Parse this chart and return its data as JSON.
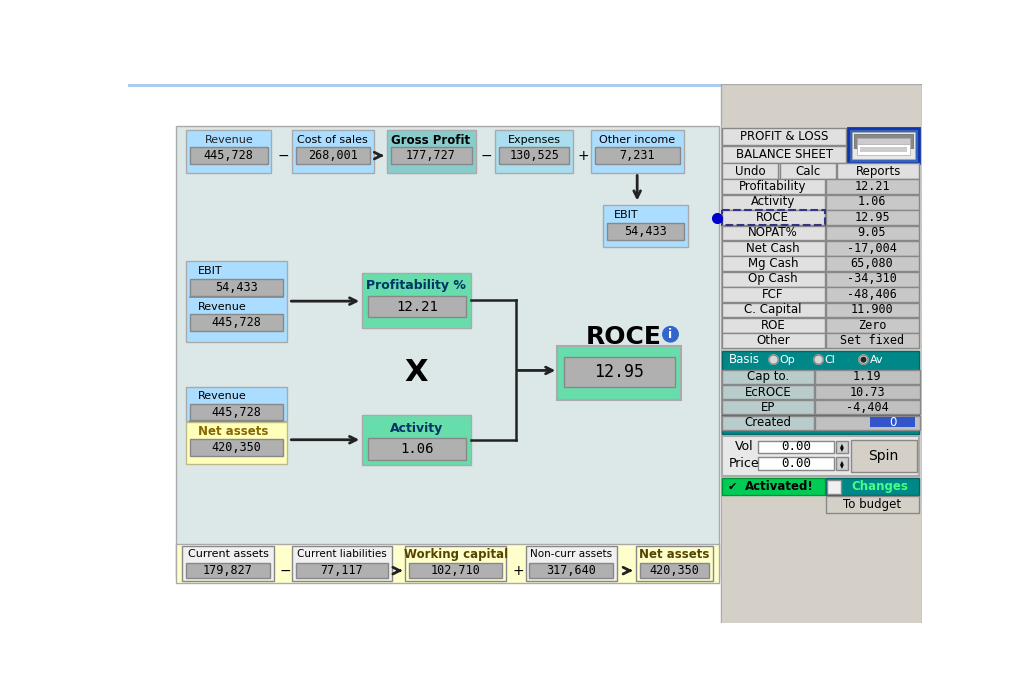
{
  "bg_white": "#ffffff",
  "bg_outer": "#f0f0f0",
  "bg_main": "#dde8e8",
  "bg_right": "#d4d0c8",
  "cyan_light": "#aaddff",
  "cyan_mid": "#88cccc",
  "green_box": "#66ddaa",
  "yellow_light": "#ffffcc",
  "value_box_bg": "#b8b8b8",
  "value_box_inner": "#cccccc",
  "top_row": {
    "labels": [
      "Revenue",
      "Cost of sales",
      "Gross Profit",
      "Expenses",
      "Other income"
    ],
    "values": [
      "445,728",
      "268,001",
      "177,727",
      "130,525",
      "7,231"
    ],
    "ops": [
      "−",
      "→",
      "−",
      "+"
    ]
  },
  "bottom_row": {
    "labels": [
      "Current assets",
      "Current liabilities",
      "Working capital",
      "Non-curr assets",
      "Net assets"
    ],
    "values": [
      "179,827",
      "77,117",
      "102,710",
      "317,640",
      "420,350"
    ],
    "ops": [
      "−",
      "→",
      "+",
      "→"
    ]
  },
  "right_metrics": [
    [
      "Profitability",
      "12.21"
    ],
    [
      "Activity",
      "1.06"
    ],
    [
      "ROCE",
      "12.95"
    ],
    [
      "NOPAT%",
      "9.05"
    ],
    [
      "Net Cash",
      "-17,004"
    ],
    [
      "Mg Cash",
      "65,080"
    ],
    [
      "Op Cash",
      "-34,310"
    ],
    [
      "FCF",
      "-48,406"
    ],
    [
      "C. Capital",
      "11.900"
    ],
    [
      "ROE",
      "Zero"
    ],
    [
      "Other",
      "Set fixed"
    ]
  ],
  "basis_rows": [
    [
      "Cap to.",
      "1.19"
    ],
    [
      "EcROCE",
      "10.73"
    ],
    [
      "EP",
      "-4,404"
    ],
    [
      "Created",
      "0"
    ]
  ]
}
